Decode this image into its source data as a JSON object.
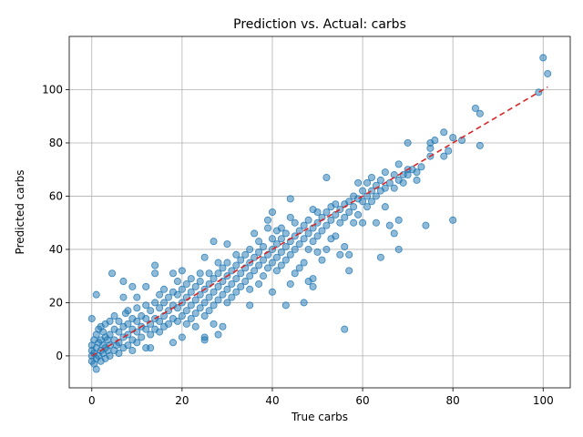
{
  "chart_data": {
    "type": "scatter",
    "title": "Prediction vs. Actual: carbs",
    "xlabel": "True carbs",
    "ylabel": "Predicted carbs",
    "xlim": [
      -5,
      106
    ],
    "ylim": [
      -12,
      120
    ],
    "xticks": [
      0,
      20,
      40,
      60,
      80,
      100
    ],
    "yticks": [
      0,
      20,
      40,
      60,
      80,
      100
    ],
    "grid": true,
    "point_color": "#1f77b4",
    "reference_line_color": "#d62728",
    "reference_line": {
      "x": [
        0,
        101
      ],
      "y": [
        0,
        101
      ]
    },
    "points": [
      [
        0,
        -2
      ],
      [
        0,
        0
      ],
      [
        0,
        2
      ],
      [
        0,
        4
      ],
      [
        0,
        14
      ],
      [
        0.5,
        -3
      ],
      [
        0.5,
        1
      ],
      [
        0.5,
        6
      ],
      [
        1,
        -5
      ],
      [
        1,
        -1
      ],
      [
        1,
        3
      ],
      [
        1,
        8
      ],
      [
        1,
        23
      ],
      [
        1.5,
        0
      ],
      [
        1.5,
        5
      ],
      [
        1.5,
        10
      ],
      [
        2,
        -2
      ],
      [
        2,
        2
      ],
      [
        2,
        6
      ],
      [
        2,
        11
      ],
      [
        2.5,
        1
      ],
      [
        2.5,
        4
      ],
      [
        2.5,
        9
      ],
      [
        3,
        -1
      ],
      [
        3,
        3
      ],
      [
        3,
        7
      ],
      [
        3,
        12
      ],
      [
        3.5,
        2
      ],
      [
        3.5,
        6
      ],
      [
        4,
        0
      ],
      [
        4,
        4
      ],
      [
        4,
        8
      ],
      [
        4,
        13
      ],
      [
        4.5,
        31
      ],
      [
        5,
        2
      ],
      [
        5,
        6
      ],
      [
        5,
        10
      ],
      [
        5,
        15
      ],
      [
        5.5,
        4
      ],
      [
        6,
        1
      ],
      [
        6,
        5
      ],
      [
        6,
        9
      ],
      [
        6,
        13
      ],
      [
        7,
        3
      ],
      [
        7,
        7
      ],
      [
        7,
        11
      ],
      [
        7,
        22
      ],
      [
        7,
        28
      ],
      [
        7.5,
        16
      ],
      [
        8,
        4
      ],
      [
        8,
        8
      ],
      [
        8,
        12
      ],
      [
        8,
        17
      ],
      [
        9,
        2
      ],
      [
        9,
        6
      ],
      [
        9,
        10
      ],
      [
        9,
        14
      ],
      [
        9,
        26
      ],
      [
        10,
        5
      ],
      [
        10,
        9
      ],
      [
        10,
        13
      ],
      [
        10,
        18
      ],
      [
        10,
        22
      ],
      [
        11,
        7
      ],
      [
        11,
        11
      ],
      [
        11,
        15
      ],
      [
        12,
        3
      ],
      [
        12,
        10
      ],
      [
        12,
        14
      ],
      [
        12,
        19
      ],
      [
        12,
        26
      ],
      [
        13,
        8
      ],
      [
        13,
        12
      ],
      [
        13,
        17
      ],
      [
        13,
        3
      ],
      [
        14,
        10
      ],
      [
        14,
        14
      ],
      [
        14,
        20
      ],
      [
        14,
        34
      ],
      [
        14,
        31
      ],
      [
        15,
        9
      ],
      [
        15,
        13
      ],
      [
        15,
        18
      ],
      [
        15,
        23
      ],
      [
        16,
        11
      ],
      [
        16,
        15
      ],
      [
        16,
        20
      ],
      [
        16,
        25
      ],
      [
        17,
        12
      ],
      [
        17,
        17
      ],
      [
        17,
        22
      ],
      [
        18,
        5
      ],
      [
        18,
        14
      ],
      [
        18,
        19
      ],
      [
        18,
        24
      ],
      [
        18,
        31
      ],
      [
        19,
        13
      ],
      [
        19,
        18
      ],
      [
        19,
        23
      ],
      [
        19,
        28
      ],
      [
        20,
        7
      ],
      [
        20,
        15
      ],
      [
        20,
        20
      ],
      [
        20,
        25
      ],
      [
        20,
        32
      ],
      [
        21,
        12
      ],
      [
        21,
        17
      ],
      [
        21,
        22
      ],
      [
        21,
        27
      ],
      [
        22,
        14
      ],
      [
        22,
        19
      ],
      [
        22,
        24
      ],
      [
        22,
        29
      ],
      [
        23,
        11
      ],
      [
        23,
        16
      ],
      [
        23,
        21
      ],
      [
        23,
        26
      ],
      [
        24,
        18
      ],
      [
        24,
        23
      ],
      [
        24,
        28
      ],
      [
        24,
        31
      ],
      [
        25,
        6
      ],
      [
        25,
        7
      ],
      [
        25,
        15
      ],
      [
        25,
        20
      ],
      [
        25,
        25
      ],
      [
        25,
        37
      ],
      [
        26,
        17
      ],
      [
        26,
        22
      ],
      [
        26,
        27
      ],
      [
        26,
        31
      ],
      [
        27,
        12
      ],
      [
        27,
        19
      ],
      [
        27,
        24
      ],
      [
        27,
        29
      ],
      [
        27,
        43
      ],
      [
        28,
        8
      ],
      [
        28,
        21
      ],
      [
        28,
        26
      ],
      [
        28,
        31
      ],
      [
        28,
        35
      ],
      [
        29,
        11
      ],
      [
        29,
        23
      ],
      [
        29,
        28
      ],
      [
        29,
        33
      ],
      [
        30,
        20
      ],
      [
        30,
        25
      ],
      [
        30,
        30
      ],
      [
        30,
        35
      ],
      [
        30,
        42
      ],
      [
        31,
        22
      ],
      [
        31,
        27
      ],
      [
        31,
        32
      ],
      [
        32,
        24
      ],
      [
        32,
        29
      ],
      [
        32,
        34
      ],
      [
        32,
        38
      ],
      [
        33,
        26
      ],
      [
        33,
        31
      ],
      [
        33,
        36
      ],
      [
        34,
        28
      ],
      [
        34,
        33
      ],
      [
        34,
        38
      ],
      [
        35,
        19
      ],
      [
        35,
        25
      ],
      [
        35,
        30
      ],
      [
        35,
        35
      ],
      [
        35,
        40
      ],
      [
        36,
        32
      ],
      [
        36,
        37
      ],
      [
        36,
        46
      ],
      [
        37,
        27
      ],
      [
        37,
        34
      ],
      [
        37,
        39
      ],
      [
        37,
        43
      ],
      [
        38,
        30
      ],
      [
        38,
        36
      ],
      [
        38,
        41
      ],
      [
        39,
        33
      ],
      [
        39,
        38
      ],
      [
        39,
        48
      ],
      [
        39,
        51
      ],
      [
        40,
        24
      ],
      [
        40,
        35
      ],
      [
        40,
        40
      ],
      [
        40,
        44
      ],
      [
        40,
        54
      ],
      [
        41,
        32
      ],
      [
        41,
        37
      ],
      [
        41,
        42
      ],
      [
        41,
        47
      ],
      [
        42,
        34
      ],
      [
        42,
        39
      ],
      [
        42,
        44
      ],
      [
        42,
        48
      ],
      [
        43,
        19
      ],
      [
        43,
        36
      ],
      [
        43,
        41
      ],
      [
        43,
        46
      ],
      [
        44,
        27
      ],
      [
        44,
        38
      ],
      [
        44,
        43
      ],
      [
        44,
        52
      ],
      [
        44,
        59
      ],
      [
        45,
        31
      ],
      [
        45,
        40
      ],
      [
        45,
        45
      ],
      [
        45,
        50
      ],
      [
        46,
        33
      ],
      [
        46,
        42
      ],
      [
        46,
        47
      ],
      [
        47,
        20
      ],
      [
        47,
        35
      ],
      [
        47,
        44
      ],
      [
        47,
        49
      ],
      [
        48,
        28
      ],
      [
        48,
        40
      ],
      [
        48,
        46
      ],
      [
        48,
        51
      ],
      [
        49,
        26
      ],
      [
        49,
        29
      ],
      [
        49,
        43
      ],
      [
        49,
        48
      ],
      [
        49,
        55
      ],
      [
        50,
        39
      ],
      [
        50,
        45
      ],
      [
        50,
        50
      ],
      [
        50,
        54
      ],
      [
        51,
        36
      ],
      [
        51,
        47
      ],
      [
        51,
        52
      ],
      [
        52,
        40
      ],
      [
        52,
        49
      ],
      [
        52,
        54
      ],
      [
        52,
        67
      ],
      [
        53,
        44
      ],
      [
        53,
        51
      ],
      [
        53,
        56
      ],
      [
        54,
        45
      ],
      [
        54,
        53
      ],
      [
        54,
        57
      ],
      [
        55,
        38
      ],
      [
        55,
        50
      ],
      [
        55,
        55
      ],
      [
        56,
        10
      ],
      [
        56,
        41
      ],
      [
        56,
        52
      ],
      [
        56,
        57
      ],
      [
        57,
        32
      ],
      [
        57,
        38
      ],
      [
        57,
        54
      ],
      [
        57,
        58
      ],
      [
        58,
        50
      ],
      [
        58,
        56
      ],
      [
        58,
        60
      ],
      [
        59,
        53
      ],
      [
        59,
        59
      ],
      [
        59,
        65
      ],
      [
        60,
        50
      ],
      [
        60,
        58
      ],
      [
        60,
        62
      ],
      [
        61,
        56
      ],
      [
        61,
        60
      ],
      [
        61,
        65
      ],
      [
        62,
        58
      ],
      [
        62,
        62
      ],
      [
        62,
        67
      ],
      [
        63,
        50
      ],
      [
        63,
        60
      ],
      [
        63,
        64
      ],
      [
        64,
        37
      ],
      [
        64,
        62
      ],
      [
        64,
        66
      ],
      [
        65,
        56
      ],
      [
        65,
        63
      ],
      [
        65,
        69
      ],
      [
        66,
        49
      ],
      [
        66,
        65
      ],
      [
        67,
        46
      ],
      [
        67,
        63
      ],
      [
        67,
        68
      ],
      [
        68,
        40
      ],
      [
        68,
        51
      ],
      [
        68,
        66
      ],
      [
        68,
        72
      ],
      [
        69,
        65
      ],
      [
        69,
        68
      ],
      [
        70,
        68
      ],
      [
        70,
        70
      ],
      [
        70,
        80
      ],
      [
        71,
        70
      ],
      [
        72,
        66
      ],
      [
        72,
        69
      ],
      [
        73,
        71
      ],
      [
        74,
        49
      ],
      [
        75,
        78
      ],
      [
        75,
        80
      ],
      [
        75,
        75
      ],
      [
        76,
        81
      ],
      [
        78,
        75
      ],
      [
        78,
        84
      ],
      [
        79,
        77
      ],
      [
        80,
        51
      ],
      [
        80,
        82
      ],
      [
        82,
        81
      ],
      [
        85,
        93
      ],
      [
        86,
        91
      ],
      [
        86,
        79
      ],
      [
        99,
        99
      ],
      [
        100,
        112
      ],
      [
        101,
        106
      ]
    ]
  }
}
